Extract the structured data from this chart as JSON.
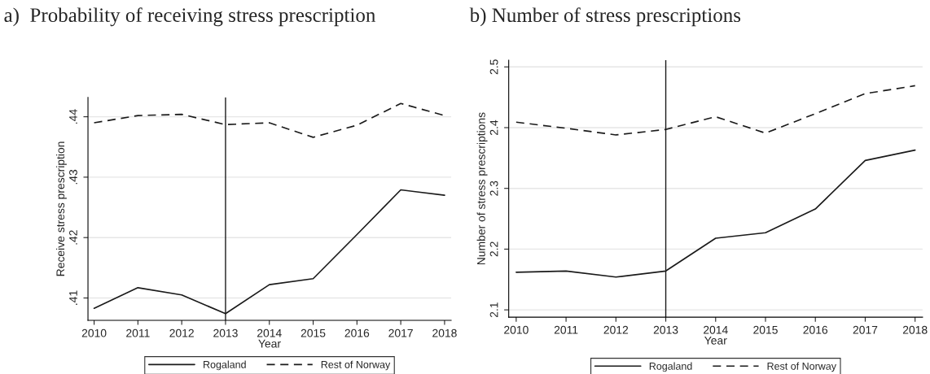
{
  "chart_data": [
    {
      "type": "line",
      "title": "a)  Probability of receiving stress prescription",
      "xlabel": "Year",
      "ylabel": "Receive stress prescription",
      "x": [
        2010,
        2011,
        2012,
        2013,
        2014,
        2015,
        2016,
        2017,
        2018
      ],
      "series": [
        {
          "name": "Rogaland",
          "color": "#1a1a1a",
          "line_style": "solid",
          "values": [
            0.4083,
            0.4117,
            0.4105,
            0.4074,
            0.4122,
            0.4132,
            0.4205,
            0.4279,
            0.427
          ]
        },
        {
          "name": "Rest of Norway",
          "color": "#1a1a1a",
          "line_style": "dashed",
          "values": [
            0.439,
            0.4402,
            0.4404,
            0.4387,
            0.439,
            0.4366,
            0.4386,
            0.4422,
            0.4402
          ]
        }
      ],
      "xlim": [
        2009.86,
        2018.15
      ],
      "ylim": [
        0.4063,
        0.4432
      ],
      "xticks": [
        2010,
        2011,
        2012,
        2013,
        2014,
        2015,
        2016,
        2017,
        2018
      ],
      "yticks": [
        {
          "value": 0.41,
          "label": ".41"
        },
        {
          "value": 0.42,
          "label": ".42"
        },
        {
          "value": 0.43,
          "label": ".43"
        },
        {
          "value": 0.44,
          "label": ".44"
        }
      ],
      "ref_lines": [
        {
          "axis": "x",
          "value": 2013,
          "color": "#1a1a1a"
        }
      ],
      "grid": "y",
      "legend": "bottom"
    },
    {
      "type": "line",
      "title": "b) Number of stress prescriptions",
      "xlabel": "Year",
      "ylabel": "Number of stress prescriptions",
      "x": [
        2010,
        2011,
        2012,
        2013,
        2014,
        2015,
        2016,
        2017,
        2018
      ],
      "series": [
        {
          "name": "Rogaland",
          "color": "#1a1a1a",
          "line_style": "solid",
          "values": [
            2.162,
            2.164,
            2.154,
            2.164,
            2.218,
            2.227,
            2.266,
            2.346,
            2.363
          ]
        },
        {
          "name": "Rest of Norway",
          "color": "#1a1a1a",
          "line_style": "dashed",
          "values": [
            2.409,
            2.399,
            2.388,
            2.397,
            2.418,
            2.391,
            2.423,
            2.456,
            2.469
          ]
        }
      ],
      "xlim": [
        2009.85,
        2018.15
      ],
      "ylim": [
        2.088,
        2.511
      ],
      "xticks": [
        2010,
        2011,
        2012,
        2013,
        2014,
        2015,
        2016,
        2017,
        2018
      ],
      "yticks": [
        2.1,
        2.2,
        2.3,
        2.4,
        2.5
      ],
      "ref_lines": [
        {
          "axis": "x",
          "value": 2013,
          "color": "#1a1a1a"
        }
      ],
      "grid": "y",
      "legend": "bottom"
    }
  ]
}
